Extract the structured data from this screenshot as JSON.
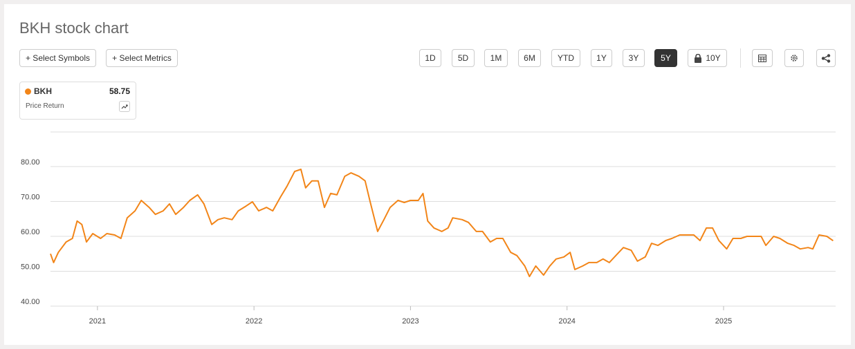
{
  "header": {
    "title": "BKH stock chart",
    "buttons": [
      "+ Select Symbols",
      "+ Select Metrics"
    ]
  },
  "controls": {
    "ranges": [
      "1D",
      "5D",
      "1M",
      "6M",
      "YTD",
      "1Y",
      "3Y",
      "5Y",
      "10Y"
    ]
  },
  "legend": {
    "subtitle": "Price Return"
  },
  "chart_data": {
    "type": "line",
    "x": [
      2020.7,
      2020.72,
      2020.75,
      2020.8,
      2020.84,
      2020.87,
      2020.9,
      2020.93,
      2020.97,
      2021.02,
      2021.06,
      2021.11,
      2021.15,
      2021.19,
      2021.24,
      2021.28,
      2021.33,
      2021.37,
      2021.42,
      2021.46,
      2021.5,
      2021.55,
      2021.59,
      2021.64,
      2021.68,
      2021.73,
      2021.77,
      2021.81,
      2021.86,
      2021.9,
      2021.95,
      2021.99,
      2022.03,
      2022.08,
      2022.12,
      2022.17,
      2022.21,
      2022.26,
      2022.3,
      2022.33,
      2022.37,
      2022.41,
      2022.45,
      2022.49,
      2022.53,
      2022.58,
      2022.62,
      2022.67,
      2022.71,
      2022.74,
      2022.79,
      2022.83,
      2022.87,
      2022.92,
      2022.96,
      2023.0,
      2023.05,
      2023.08,
      2023.11,
      2023.15,
      2023.2,
      2023.24,
      2023.27,
      2023.33,
      2023.37,
      2023.42,
      2023.46,
      2023.51,
      2023.55,
      2023.59,
      2023.64,
      2023.68,
      2023.73,
      2023.76,
      2023.8,
      2023.85,
      2023.89,
      2023.93,
      2023.98,
      2024.02,
      2024.05,
      2024.1,
      2024.14,
      2024.19,
      2024.23,
      2024.27,
      2024.32,
      2024.36,
      2024.41,
      2024.45,
      2024.5,
      2024.54,
      2024.58,
      2024.63,
      2024.67,
      2024.72,
      2024.76,
      2024.81,
      2024.85,
      2024.89,
      2024.93,
      2024.97,
      2025.02,
      2025.06,
      2025.11,
      2025.15,
      2025.19,
      2025.24,
      2025.27,
      2025.32,
      2025.36,
      2025.41,
      2025.45,
      2025.49,
      2025.54,
      2025.57,
      2025.61,
      2025.66,
      2025.7
    ],
    "series": [
      {
        "name": "BKH",
        "color": "#f28518",
        "values": [
          55.0,
          52.5,
          55.4,
          58.4,
          59.4,
          64.4,
          63.4,
          58.4,
          60.8,
          59.4,
          60.8,
          60.4,
          59.4,
          65.3,
          67.3,
          70.3,
          68.3,
          66.3,
          67.3,
          69.3,
          66.3,
          68.3,
          70.3,
          71.9,
          69.3,
          63.4,
          64.8,
          65.3,
          64.8,
          67.3,
          68.7,
          69.9,
          67.3,
          68.3,
          67.3,
          71.3,
          74.3,
          78.6,
          79.2,
          73.9,
          75.9,
          75.9,
          68.3,
          72.3,
          71.9,
          77.2,
          78.2,
          77.2,
          75.9,
          70.3,
          61.4,
          64.8,
          68.3,
          70.3,
          69.7,
          70.3,
          70.3,
          72.3,
          64.4,
          62.4,
          61.4,
          62.4,
          65.3,
          64.8,
          64.0,
          61.4,
          61.4,
          58.4,
          59.4,
          59.4,
          55.4,
          54.5,
          51.5,
          48.5,
          51.5,
          48.9,
          51.5,
          53.5,
          54.1,
          55.4,
          50.5,
          51.5,
          52.5,
          52.5,
          53.5,
          52.5,
          54.9,
          56.8,
          56.0,
          52.9,
          54.1,
          58.0,
          57.4,
          58.8,
          59.4,
          60.4,
          60.4,
          60.4,
          58.8,
          62.4,
          62.4,
          58.8,
          56.4,
          59.4,
          59.4,
          60.0,
          60.0,
          60.0,
          57.4,
          60.0,
          59.4,
          58.0,
          57.4,
          56.4,
          56.8,
          56.4,
          60.4,
          60.0,
          58.75
        ]
      }
    ],
    "xlim": [
      2020.7,
      2025.716
    ],
    "xticks": [
      2021,
      2022,
      2023,
      2024,
      2025
    ],
    "ylim": [
      40,
      89.9
    ],
    "yticks": [
      {
        "value": 40,
        "label": "40.00"
      },
      {
        "value": 50,
        "label": "50.00"
      },
      {
        "value": 60,
        "label": "60.00"
      },
      {
        "value": 70,
        "label": "70.00"
      },
      {
        "value": 80,
        "label": "80.00"
      }
    ],
    "grid": true
  }
}
